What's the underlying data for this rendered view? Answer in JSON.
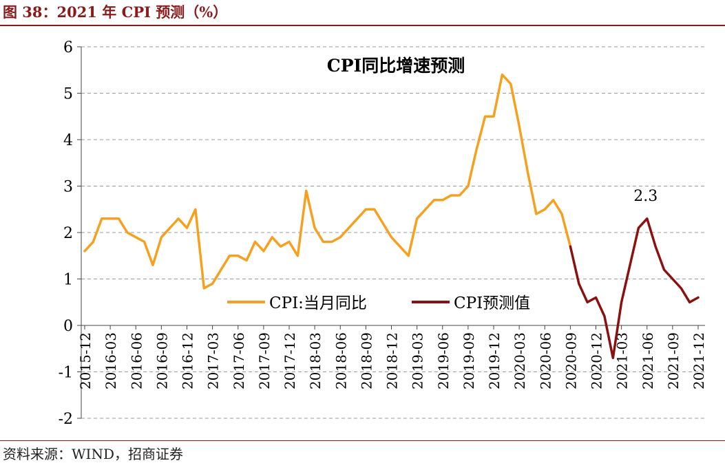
{
  "header": {
    "title": "图 38：2021 年 CPI 预测（%）"
  },
  "footer": {
    "source": "资料来源：WIND，招商证券"
  },
  "colors": {
    "actual": "#f5a01e",
    "forecast": "#8b1010",
    "grid": "#999999",
    "header": "#8b1a1a"
  },
  "chart_data": {
    "type": "line",
    "title": "CPI同比增速预测",
    "ylim": [
      -2,
      6
    ],
    "yticks": [
      -2,
      -1,
      0,
      1,
      2,
      3,
      4,
      5,
      6
    ],
    "xtick_labels": [
      "2015-12",
      "2016-03",
      "2016-06",
      "2016-09",
      "2016-12",
      "2017-03",
      "2017-06",
      "2017-09",
      "2017-12",
      "2018-03",
      "2018-06",
      "2018-09",
      "2018-12",
      "2019-03",
      "2019-06",
      "2019-09",
      "2019-12",
      "2020-03",
      "2020-06",
      "2020-09",
      "2020-12",
      "2021-03",
      "2021-06",
      "2021-09",
      "2021-12"
    ],
    "legend_position": "bottom-center",
    "annotations": [
      {
        "text": "2.3",
        "x": "2021-06",
        "y": 2.3
      }
    ],
    "series": [
      {
        "name": "CPI:当月同比",
        "start": "2015-12",
        "values": [
          1.6,
          1.8,
          2.3,
          2.3,
          2.3,
          2.0,
          1.9,
          1.8,
          1.3,
          1.9,
          2.1,
          2.3,
          2.1,
          2.5,
          0.8,
          0.9,
          1.2,
          1.5,
          1.5,
          1.4,
          1.8,
          1.6,
          1.9,
          1.7,
          1.8,
          1.5,
          2.9,
          2.1,
          1.8,
          1.8,
          1.9,
          2.1,
          2.3,
          2.5,
          2.5,
          2.2,
          1.9,
          1.7,
          1.5,
          2.3,
          2.5,
          2.7,
          2.7,
          2.8,
          2.8,
          3.0,
          3.8,
          4.5,
          4.5,
          5.4,
          5.2,
          4.3,
          3.3,
          2.4,
          2.5,
          2.7,
          2.4,
          1.7
        ]
      },
      {
        "name": "CPI预测值",
        "start": "2020-09",
        "values": [
          1.7,
          0.9,
          0.5,
          0.6,
          0.2,
          -0.7,
          0.5,
          1.3,
          2.1,
          2.3,
          1.7,
          1.2,
          1.0,
          0.8,
          0.5,
          0.6
        ]
      }
    ]
  }
}
